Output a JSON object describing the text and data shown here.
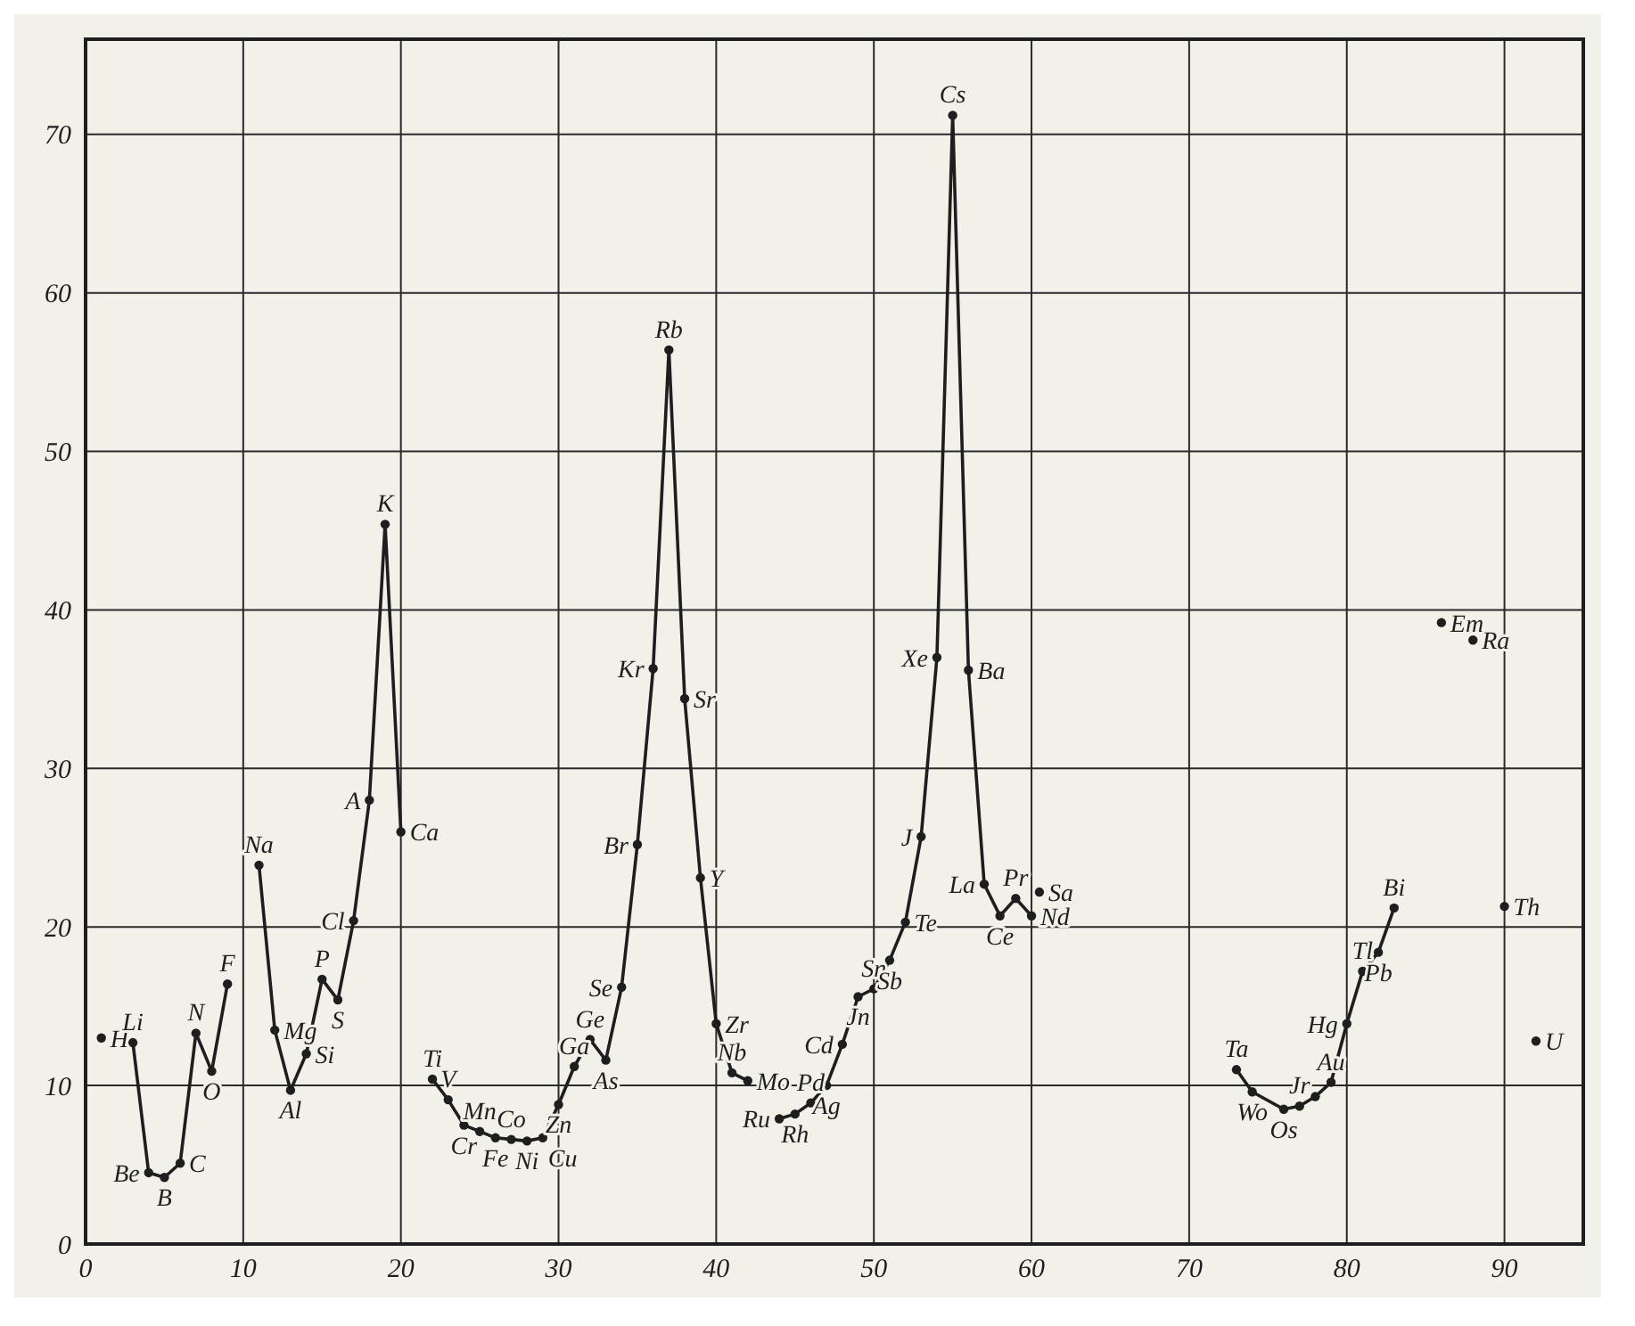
{
  "chart_data": {
    "type": "line",
    "xlim": [
      0,
      95
    ],
    "ylim": [
      0,
      76
    ],
    "xticks": [
      0,
      10,
      20,
      30,
      40,
      50,
      60,
      70,
      80,
      90
    ],
    "yticks": [
      0,
      10,
      20,
      30,
      40,
      50,
      60,
      70
    ],
    "grid": true,
    "marker": "circle",
    "line_style": "solid",
    "series": [
      {
        "type": "scatter",
        "color": "#1e1e1e",
        "x": [
          1
        ],
        "values": [
          13
        ]
      },
      {
        "color": "#1e1e1e",
        "x": [
          3,
          4,
          5,
          6,
          7,
          8,
          9
        ],
        "values": [
          12.7,
          4.5,
          4.2,
          5.1,
          13.3,
          10.9,
          16.4
        ]
      },
      {
        "color": "#1e1e1e",
        "x": [
          11,
          12,
          13,
          14,
          15,
          16,
          17,
          18,
          19,
          20
        ],
        "values": [
          23.9,
          13.5,
          9.7,
          12.0,
          16.7,
          15.4,
          20.4,
          28.0,
          45.4,
          26.0
        ]
      },
      {
        "color": "#1e1e1e",
        "x": [
          22,
          23,
          24,
          25,
          26,
          27,
          28,
          29,
          30,
          31,
          32,
          33,
          34,
          35,
          36,
          37,
          38,
          39,
          40,
          41,
          42
        ],
        "values": [
          10.4,
          9.1,
          7.5,
          7.1,
          6.7,
          6.6,
          6.5,
          6.7,
          8.8,
          11.2,
          12.9,
          11.6,
          16.2,
          25.2,
          36.3,
          56.4,
          34.4,
          23.1,
          13.9,
          10.8,
          10.3
        ]
      },
      {
        "color": "#1e1e1e",
        "x": [
          44,
          45,
          46,
          47,
          48,
          49,
          50,
          51,
          52,
          53,
          54,
          55,
          56,
          57,
          58,
          59,
          60
        ],
        "values": [
          7.9,
          8.2,
          8.9,
          10.0,
          12.6,
          15.6,
          16.1,
          17.9,
          20.3,
          25.7,
          37.0,
          71.2,
          36.2,
          22.7,
          20.7,
          21.8,
          20.7
        ]
      },
      {
        "type": "scatter",
        "color": "#1e1e1e",
        "x": [
          60.5
        ],
        "values": [
          22.2
        ]
      },
      {
        "color": "#1e1e1e",
        "x": [
          73,
          74,
          76,
          77,
          78,
          79,
          80,
          81,
          82,
          83
        ],
        "values": [
          11.0,
          9.6,
          8.5,
          8.7,
          9.3,
          10.2,
          13.9,
          17.2,
          18.4,
          21.2
        ]
      },
      {
        "type": "scatter",
        "color": "#1e1e1e",
        "x": [
          86,
          88,
          90,
          92
        ],
        "values": [
          39.2,
          38.1,
          21.3,
          12.8
        ]
      }
    ],
    "annotations": [
      {
        "text": "H",
        "x": 1,
        "y": 13
      },
      {
        "text": "Li",
        "x": 3,
        "y": 12.7
      },
      {
        "text": "Be",
        "x": 4,
        "y": 4.5
      },
      {
        "text": "B",
        "x": 5,
        "y": 4.2
      },
      {
        "text": "C",
        "x": 6,
        "y": 5.1
      },
      {
        "text": "N",
        "x": 7,
        "y": 13.3
      },
      {
        "text": "O",
        "x": 8,
        "y": 10.9
      },
      {
        "text": "F",
        "x": 9,
        "y": 16.4
      },
      {
        "text": "Na",
        "x": 11,
        "y": 23.9
      },
      {
        "text": "Mg",
        "x": 12,
        "y": 13.5
      },
      {
        "text": "Al",
        "x": 13,
        "y": 9.7
      },
      {
        "text": "Si",
        "x": 14,
        "y": 12.0
      },
      {
        "text": "P",
        "x": 15,
        "y": 16.7
      },
      {
        "text": "S",
        "x": 16,
        "y": 15.4
      },
      {
        "text": "Cl",
        "x": 17,
        "y": 20.4
      },
      {
        "text": "A",
        "x": 18,
        "y": 28.0
      },
      {
        "text": "K",
        "x": 19,
        "y": 45.4
      },
      {
        "text": "Ca",
        "x": 20,
        "y": 26.0
      },
      {
        "text": "Ti",
        "x": 22,
        "y": 10.4
      },
      {
        "text": "V",
        "x": 23,
        "y": 9.1
      },
      {
        "text": "Cr",
        "x": 24,
        "y": 7.5
      },
      {
        "text": "Mn",
        "x": 25,
        "y": 7.1
      },
      {
        "text": "Fe",
        "x": 26,
        "y": 6.7
      },
      {
        "text": "Co",
        "x": 27,
        "y": 6.6
      },
      {
        "text": "Ni",
        "x": 28,
        "y": 6.5
      },
      {
        "text": "Cu",
        "x": 29,
        "y": 6.7
      },
      {
        "text": "Zn",
        "x": 30,
        "y": 8.8
      },
      {
        "text": "Ga",
        "x": 31,
        "y": 11.2
      },
      {
        "text": "Ge",
        "x": 32,
        "y": 12.9
      },
      {
        "text": "As",
        "x": 33,
        "y": 11.6
      },
      {
        "text": "Se",
        "x": 34,
        "y": 16.2
      },
      {
        "text": "Br",
        "x": 35,
        "y": 25.2
      },
      {
        "text": "Kr",
        "x": 36,
        "y": 36.3
      },
      {
        "text": "Rb",
        "x": 37,
        "y": 56.4
      },
      {
        "text": "Sr",
        "x": 38,
        "y": 34.4
      },
      {
        "text": "Y",
        "x": 39,
        "y": 23.1
      },
      {
        "text": "Zr",
        "x": 40,
        "y": 13.9
      },
      {
        "text": "Nb",
        "x": 41,
        "y": 10.8
      },
      {
        "text": "Mo",
        "x": 42,
        "y": 10.3
      },
      {
        "text": "Ru",
        "x": 44,
        "y": 7.9
      },
      {
        "text": "Rh",
        "x": 45,
        "y": 8.2
      },
      {
        "text": "Pd",
        "x": 46,
        "y": 8.9
      },
      {
        "text": "Ag",
        "x": 47,
        "y": 10.0
      },
      {
        "text": "Cd",
        "x": 48,
        "y": 12.6
      },
      {
        "text": "Jn",
        "x": 49,
        "y": 15.6
      },
      {
        "text": "Sn",
        "x": 50,
        "y": 16.1
      },
      {
        "text": "Sb",
        "x": 51,
        "y": 17.9
      },
      {
        "text": "Te",
        "x": 52,
        "y": 20.3
      },
      {
        "text": "J",
        "x": 53,
        "y": 25.7
      },
      {
        "text": "Xe",
        "x": 54,
        "y": 37.0
      },
      {
        "text": "Cs",
        "x": 55,
        "y": 71.2
      },
      {
        "text": "Ba",
        "x": 56,
        "y": 36.2
      },
      {
        "text": "La",
        "x": 57,
        "y": 22.7
      },
      {
        "text": "Ce",
        "x": 58,
        "y": 20.7
      },
      {
        "text": "Pr",
        "x": 59,
        "y": 21.8
      },
      {
        "text": "Nd",
        "x": 60,
        "y": 20.7
      },
      {
        "text": "Sa",
        "x": 60.5,
        "y": 22.2
      },
      {
        "text": "Ta",
        "x": 73,
        "y": 11.0
      },
      {
        "text": "Wo",
        "x": 74,
        "y": 9.6
      },
      {
        "text": "Os",
        "x": 76,
        "y": 8.5
      },
      {
        "text": "Jr",
        "x": 77,
        "y": 8.7
      },
      {
        "text": "Au",
        "x": 79,
        "y": 10.2
      },
      {
        "text": "Hg",
        "x": 80,
        "y": 13.9
      },
      {
        "text": "Tl",
        "x": 81,
        "y": 17.2
      },
      {
        "text": "Pb",
        "x": 82,
        "y": 18.4
      },
      {
        "text": "Bi",
        "x": 83,
        "y": 21.2
      },
      {
        "text": "Em",
        "x": 86,
        "y": 39.2
      },
      {
        "text": "Ra",
        "x": 88,
        "y": 38.1
      },
      {
        "text": "Th",
        "x": 90,
        "y": 21.3
      },
      {
        "text": "U",
        "x": 92,
        "y": 12.8
      }
    ]
  }
}
